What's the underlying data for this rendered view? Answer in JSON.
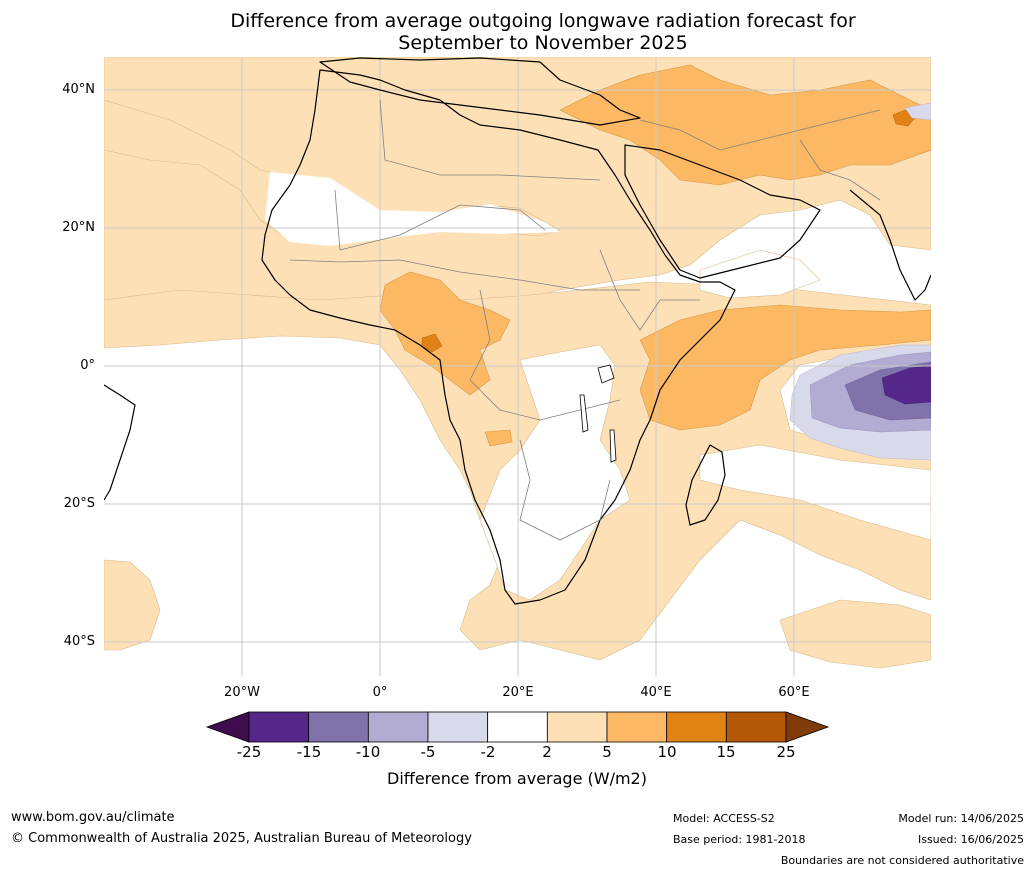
{
  "title": {
    "line1": "Difference from average outgoing longwave radiation forecast for",
    "line2": "September to November 2025"
  },
  "lat_labels": [
    "40°N",
    "20°N",
    "0°",
    "20°S",
    "40°S"
  ],
  "lon_labels": [
    "20°W",
    "0°",
    "20°E",
    "40°E",
    "60°E"
  ],
  "colorbar": {
    "ticks": [
      "-25",
      "-15",
      "-10",
      "-5",
      "-2",
      "2",
      "5",
      "10",
      "15",
      "25"
    ],
    "label": "Difference from average (W/m2)",
    "colors": [
      "#3f0d4e",
      "#542788",
      "#8073ac",
      "#b2abd2",
      "#d8daeb",
      "#ffffff",
      "#fee0b6",
      "#fdb863",
      "#e08214",
      "#b35806",
      "#7f3b08"
    ]
  },
  "footer": {
    "website": "www.bom.gov.au/climate",
    "copyright": "© Commonwealth of Australia 2025, Australian Bureau of Meteorology",
    "model": "Model: ACCESS-S2",
    "base_period": "Base period: 1981-2018",
    "model_run": "Model run: 14/06/2025",
    "issued": "Issued: 16/06/2025",
    "disclaimer": "Boundaries are not considered authoritative"
  }
}
